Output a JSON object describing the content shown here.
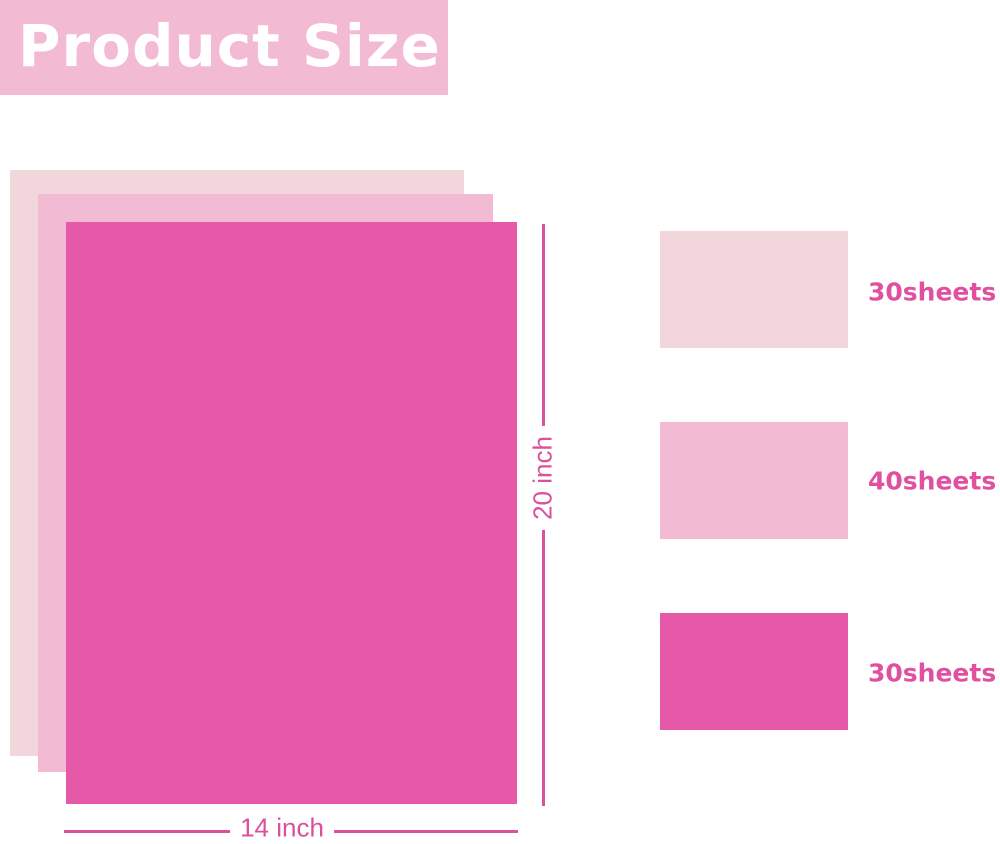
{
  "title": "Product Size",
  "colors": {
    "title_bg": "#f2bad3",
    "light": "#f1d7dc",
    "medium": "#f2bad3",
    "hot": "#e659a8",
    "accent": "#d9509b"
  },
  "dimensions": {
    "height_label": "20 inch",
    "width_label": "14 inch"
  },
  "swatches": [
    {
      "color": "#f1d7dc",
      "label": "30sheets"
    },
    {
      "color": "#f2bad3",
      "label": "40sheets"
    },
    {
      "color": "#e659a8",
      "label": "30sheets"
    }
  ]
}
